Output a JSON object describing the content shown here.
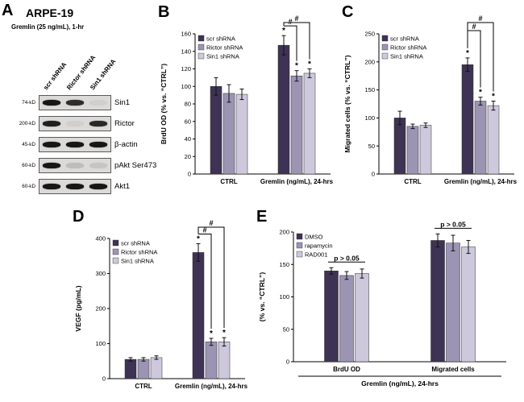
{
  "colors": {
    "series": [
      "#3e3354",
      "#9b94b3",
      "#cdc8db"
    ],
    "band": "#161616",
    "blot_bg": "#dcdad8",
    "axis": "#000000"
  },
  "panelA": {
    "letter": "A",
    "title": "ARPE-19",
    "subtitle": "Gremlin (25 ng/mL), 1-hr",
    "lanes": [
      "scr shRNA",
      "Rictor shRNA",
      "Sin1 shRNA"
    ],
    "blots": [
      {
        "kd": "74-kD",
        "protein": "Sin1",
        "bands": [
          1,
          0.88,
          0.05
        ]
      },
      {
        "kd": "200-kD",
        "protein": "Rictor",
        "bands": [
          0.95,
          0.05,
          0.9
        ]
      },
      {
        "kd": "45-kD",
        "protein": "β-actin",
        "bands": [
          1,
          1,
          1
        ]
      },
      {
        "kd": "60-kD",
        "protein": "pAkt Ser473",
        "bands": [
          1,
          0.14,
          0.1
        ]
      },
      {
        "kd": "60-kD",
        "protein": "Akt1",
        "bands": [
          1,
          1,
          1
        ]
      }
    ]
  },
  "chart_data": [
    {
      "id": "B",
      "type": "bar",
      "ylabel": "BrdU OD (% vs. “CTRL”)",
      "categories": [
        "CTRL",
        "Gremlin (ng/mL), 24-hrs"
      ],
      "ylim": [
        0,
        160
      ],
      "ytick_step": 20,
      "grid": false,
      "legend_position": "upper-left",
      "legend": [
        "scr shRNA",
        "Rictor shRNA",
        "Sin1 shRNA"
      ],
      "series": [
        {
          "name": "scr shRNA",
          "values": [
            100,
            147
          ],
          "errors": [
            10,
            11
          ],
          "stars": [
            "",
            "*"
          ]
        },
        {
          "name": "Rictor shRNA",
          "values": [
            92,
            112
          ],
          "errors": [
            10,
            6
          ],
          "stars": [
            "",
            "*"
          ]
        },
        {
          "name": "Sin1 shRNA",
          "values": [
            91,
            115
          ],
          "errors": [
            6,
            5
          ],
          "stars": [
            "",
            "*"
          ]
        }
      ],
      "brackets": [
        {
          "from": [
            0,
            1
          ],
          "to": [
            1,
            1
          ],
          "label": "#"
        },
        {
          "from": [
            0,
            1
          ],
          "to": [
            2,
            1
          ],
          "label": "#"
        }
      ]
    },
    {
      "id": "C",
      "type": "bar",
      "ylabel": "Migrated cells (% vs. “CTRL”)",
      "categories": [
        "CTRL",
        "Gremlin (ng/mL), 24-hrs"
      ],
      "ylim": [
        0,
        250
      ],
      "ytick_step": 50,
      "grid": false,
      "legend_position": "upper-left",
      "legend": [
        "scr shRNA",
        "Rictor shRNA",
        "Sin1 shRNA"
      ],
      "series": [
        {
          "name": "scr shRNA",
          "values": [
            100,
            195
          ],
          "errors": [
            12,
            12
          ],
          "stars": [
            "",
            "*"
          ]
        },
        {
          "name": "Rictor shRNA",
          "values": [
            85,
            130
          ],
          "errors": [
            4,
            7
          ],
          "stars": [
            "",
            "*"
          ]
        },
        {
          "name": "Sin1 shRNA",
          "values": [
            87,
            122
          ],
          "errors": [
            4,
            8
          ],
          "stars": [
            "",
            "*"
          ]
        }
      ],
      "brackets": [
        {
          "from": [
            0,
            1
          ],
          "to": [
            1,
            1
          ],
          "label": "#"
        },
        {
          "from": [
            0,
            1
          ],
          "to": [
            2,
            1
          ],
          "label": "#"
        }
      ]
    },
    {
      "id": "D",
      "type": "bar",
      "ylabel": "VEGF (pg/mL)",
      "categories": [
        "CTRL",
        "Gremlin (ng/mL), 24-hrs"
      ],
      "ylim": [
        0,
        400
      ],
      "ytick_step": 100,
      "grid": false,
      "legend_position": "upper-left",
      "legend": [
        "scr shRNA",
        "Rictor shRNA",
        "Sin1 shRNA"
      ],
      "series": [
        {
          "name": "scr shRNA",
          "values": [
            55,
            360
          ],
          "errors": [
            5,
            25
          ],
          "stars": [
            "",
            "*"
          ]
        },
        {
          "name": "Rictor shRNA",
          "values": [
            55,
            105
          ],
          "errors": [
            5,
            10
          ],
          "stars": [
            "",
            "*"
          ]
        },
        {
          "name": "Sin1 shRNA",
          "values": [
            60,
            105
          ],
          "errors": [
            5,
            12
          ],
          "stars": [
            "",
            "*"
          ]
        }
      ],
      "brackets": [
        {
          "from": [
            0,
            1
          ],
          "to": [
            1,
            1
          ],
          "label": "#"
        },
        {
          "from": [
            0,
            1
          ],
          "to": [
            2,
            1
          ],
          "label": "#"
        }
      ]
    },
    {
      "id": "E",
      "type": "bar",
      "ylabel": "(% vs. “CTRL”)",
      "xlabel": "Gremlin (ng/mL), 24-hrs",
      "categories": [
        "BrdU OD",
        "Migrated cells"
      ],
      "ylim": [
        0,
        200
      ],
      "ytick_step": 50,
      "grid": false,
      "legend_position": "upper-left",
      "legend": [
        "DMSO",
        "rapamycin",
        "RAD001"
      ],
      "series": [
        {
          "name": "DMSO",
          "values": [
            140,
            187
          ],
          "errors": [
            5,
            10
          ],
          "stars": [
            "",
            ""
          ]
        },
        {
          "name": "rapamycin",
          "values": [
            133,
            183
          ],
          "errors": [
            6,
            12
          ],
          "stars": [
            "",
            ""
          ]
        },
        {
          "name": "RAD001",
          "values": [
            136,
            177
          ],
          "errors": [
            7,
            10
          ],
          "stars": [
            "",
            ""
          ]
        }
      ],
      "group_labels": [
        {
          "category": 0,
          "text": "p > 0.05"
        },
        {
          "category": 1,
          "text": "p > 0.05"
        }
      ]
    }
  ]
}
